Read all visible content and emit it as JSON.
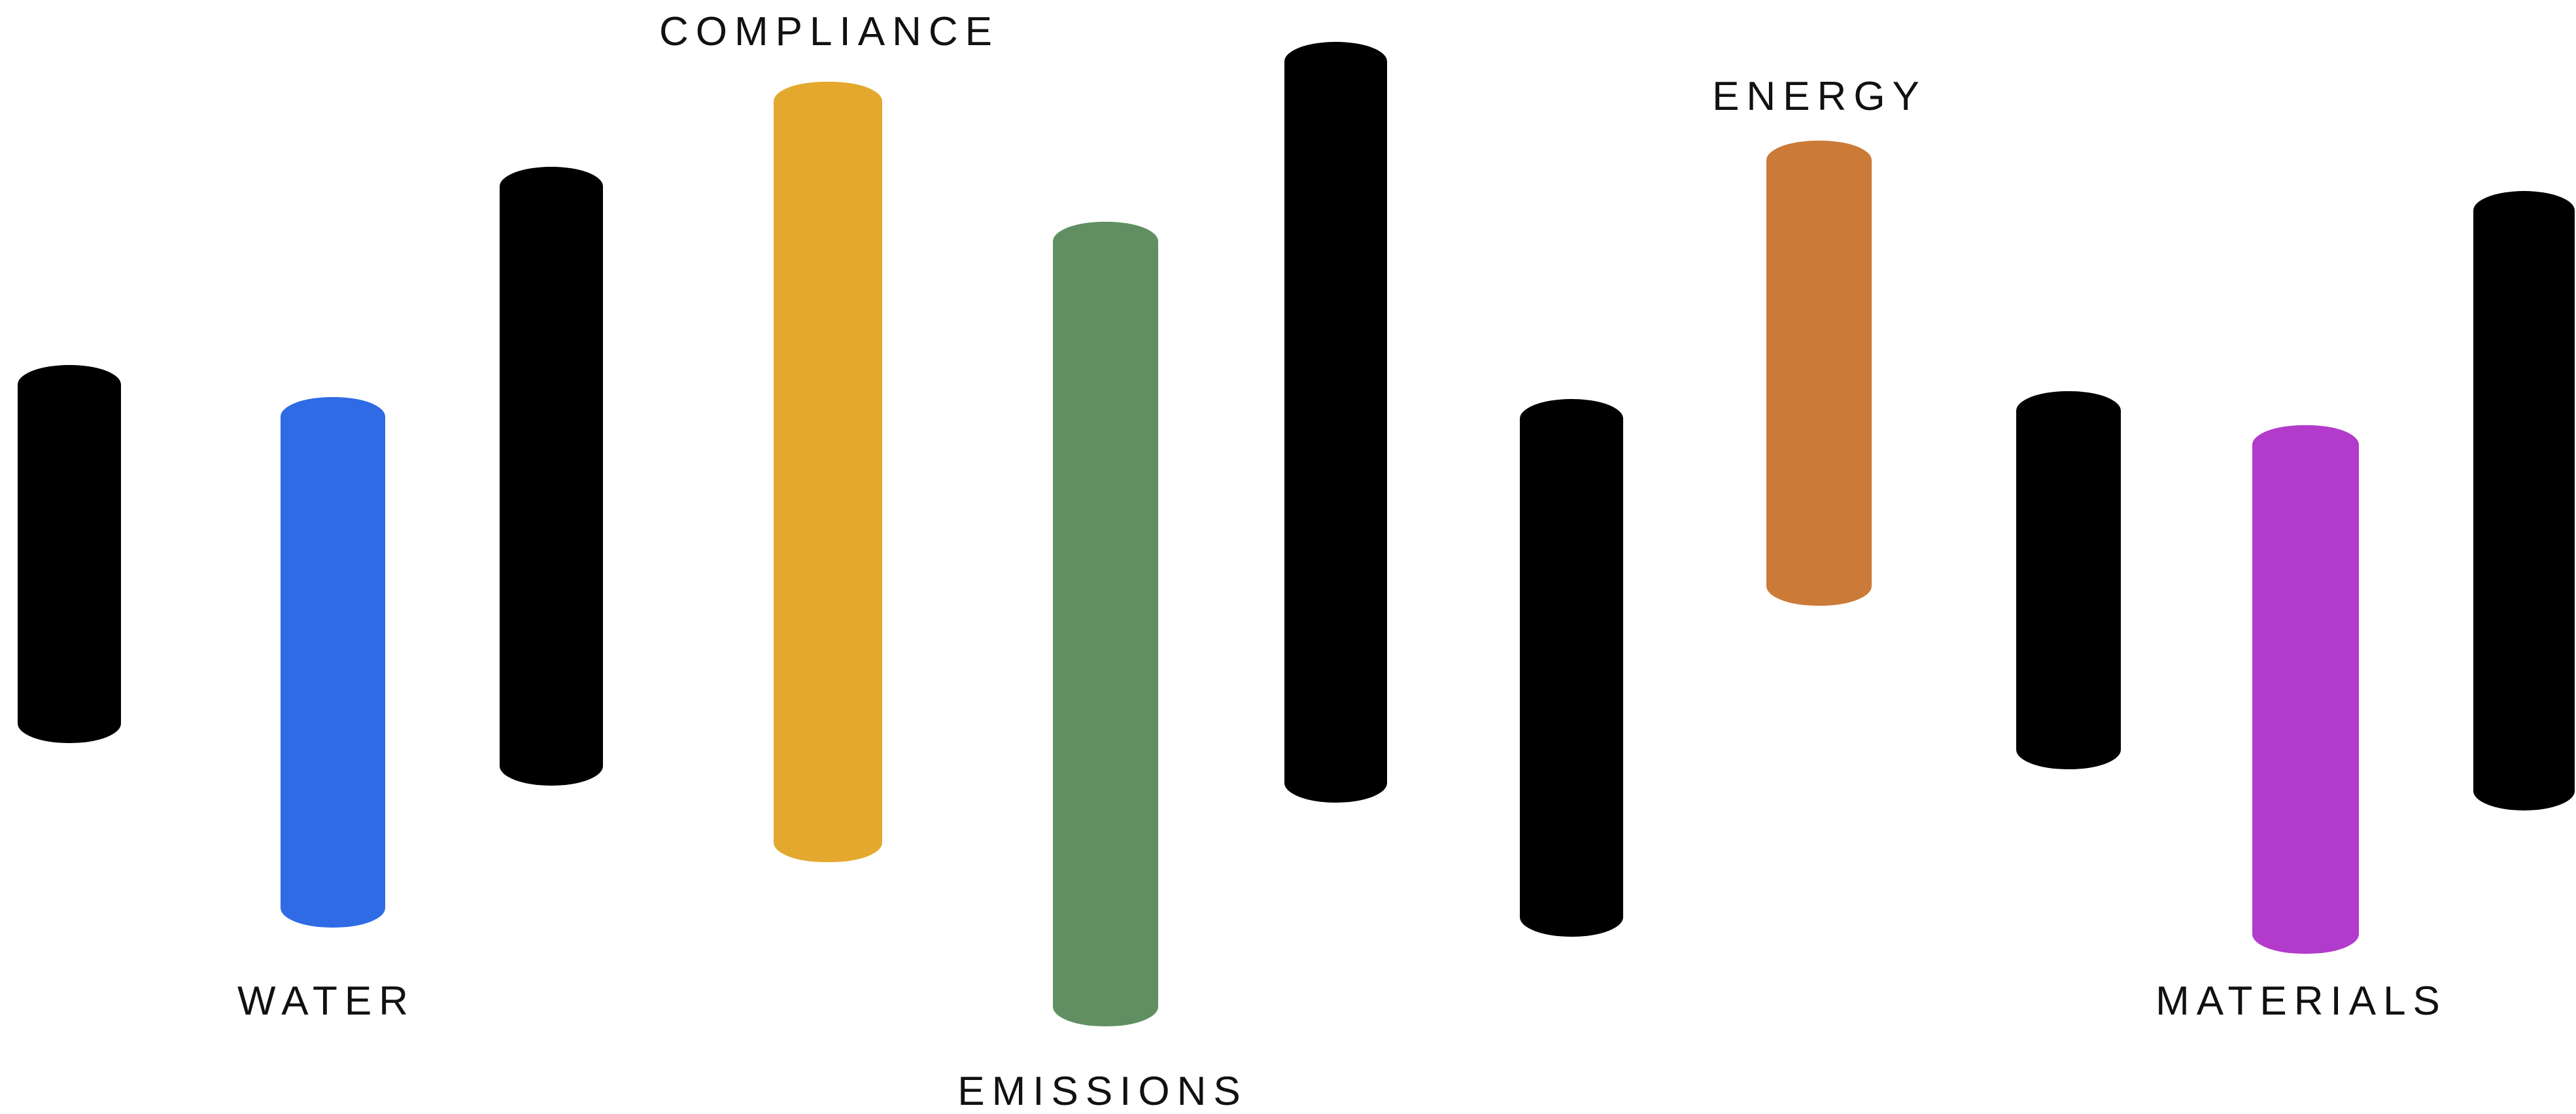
{
  "colors": {
    "background": "#ffffff",
    "neutral_bar": "#000000",
    "label_text": "#111111"
  },
  "bars": [
    {
      "name": "bar-1",
      "color": "#000000",
      "label": ""
    },
    {
      "name": "bar-water",
      "color": "#2e6be4",
      "label": "WATER"
    },
    {
      "name": "bar-3",
      "color": "#000000",
      "label": ""
    },
    {
      "name": "bar-compliance",
      "color": "#e4a82e",
      "label": "COMPLIANCE"
    },
    {
      "name": "bar-emissions",
      "color": "#618f62",
      "label": "EMISSIONS"
    },
    {
      "name": "bar-6",
      "color": "#000000",
      "label": ""
    },
    {
      "name": "bar-7",
      "color": "#000000",
      "label": ""
    },
    {
      "name": "bar-energy",
      "color": "#cb7a37",
      "label": "ENERGY"
    },
    {
      "name": "bar-9",
      "color": "#000000",
      "label": ""
    },
    {
      "name": "bar-materials",
      "color": "#b23bcb",
      "label": "MATERIALS"
    },
    {
      "name": "bar-11",
      "color": "#000000",
      "label": ""
    }
  ]
}
